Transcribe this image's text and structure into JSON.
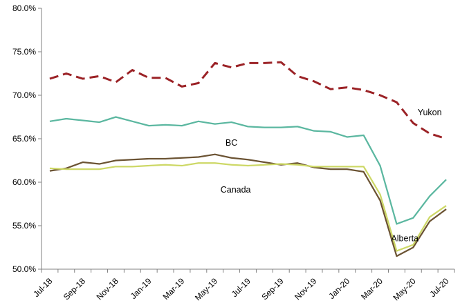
{
  "chart_data": {
    "type": "line",
    "title": "",
    "xlabel": "",
    "ylabel": "",
    "ylim": [
      50,
      80
    ],
    "yticks": [
      "50.0%",
      "55.0%",
      "60.0%",
      "65.0%",
      "70.0%",
      "75.0%",
      "80.0%"
    ],
    "ytick_values": [
      50,
      55,
      60,
      65,
      70,
      75,
      80
    ],
    "x": [
      "Jul-18",
      "Aug-18",
      "Sep-18",
      "Oct-18",
      "Nov-18",
      "Dec-18",
      "Jan-19",
      "Feb-19",
      "Mar-19",
      "Apr-19",
      "May-19",
      "Jun-19",
      "Jul-19",
      "Aug-19",
      "Sep-19",
      "Oct-19",
      "Nov-19",
      "Dec-19",
      "Jan-20",
      "Feb-20",
      "Mar-20",
      "Apr-20",
      "May-20",
      "Jun-20",
      "Jul-20"
    ],
    "xtick_labels": [
      "Jul-18",
      "Sep-18",
      "Nov-18",
      "Jan-19",
      "Mar-19",
      "May-19",
      "Jul-19",
      "Sep-19",
      "Nov-19",
      "Jan-20",
      "Mar-20",
      "May-20",
      "Jul-20"
    ],
    "grid": false,
    "series": [
      {
        "name": "Yukon",
        "color": "#9b2226",
        "dashed": true,
        "values": [
          71.9,
          72.5,
          71.9,
          72.2,
          71.5,
          72.9,
          72.0,
          72.0,
          71.0,
          71.4,
          73.7,
          73.2,
          73.7,
          73.7,
          73.8,
          72.2,
          71.6,
          70.7,
          70.9,
          70.6,
          70.0,
          69.2,
          66.8,
          65.6,
          65.0
        ]
      },
      {
        "name": "BC",
        "color": "#5bb7a0",
        "dashed": false,
        "values": [
          67.0,
          67.3,
          67.1,
          66.9,
          67.5,
          67.0,
          66.5,
          66.6,
          66.5,
          67.0,
          66.7,
          66.9,
          66.4,
          66.3,
          66.3,
          66.4,
          65.9,
          65.8,
          65.2,
          65.4,
          61.9,
          55.2,
          55.9,
          58.4,
          60.3
        ]
      },
      {
        "name": "Alberta",
        "color": "#6b5333",
        "dashed": false,
        "values": [
          61.3,
          61.6,
          62.3,
          62.1,
          62.5,
          62.6,
          62.7,
          62.7,
          62.8,
          62.9,
          63.2,
          62.8,
          62.6,
          62.3,
          62.0,
          62.2,
          61.7,
          61.5,
          61.5,
          61.2,
          57.9,
          51.5,
          52.5,
          55.5,
          56.9
        ]
      },
      {
        "name": "Canada",
        "color": "#cdd866",
        "dashed": false,
        "values": [
          61.6,
          61.5,
          61.5,
          61.5,
          61.8,
          61.8,
          61.9,
          62.0,
          61.9,
          62.2,
          62.2,
          62.0,
          61.9,
          62.0,
          62.1,
          62.0,
          61.8,
          61.8,
          61.8,
          61.8,
          58.6,
          52.1,
          52.8,
          56.0,
          57.3
        ]
      }
    ]
  }
}
